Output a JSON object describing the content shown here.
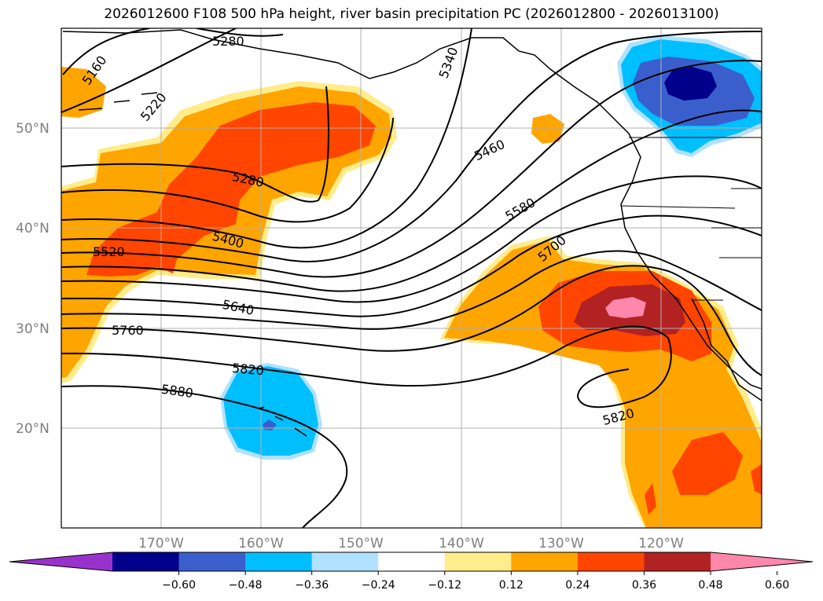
{
  "title": "2026012600 F108 500 hPa height, river basin precipitation PC (2026012800 - 2026013100)",
  "lat_labels": [
    "50°N",
    "40°N",
    "30°N",
    "20°N"
  ],
  "lon_labels": [
    "170°W",
    "160°W",
    "150°W",
    "140°W",
    "130°W",
    "120°W"
  ],
  "contour_labels": [
    "5160",
    "5220",
    "5280",
    "5280",
    "5340",
    "5400",
    "5460",
    "5520",
    "5580",
    "5640",
    "5700",
    "5760",
    "5820",
    "5820",
    "5880"
  ],
  "colorbar": {
    "ticks": [
      "−0.60",
      "−0.48",
      "−0.36",
      "−0.24",
      "−0.12",
      "0.12",
      "0.24",
      "0.36",
      "0.48",
      "0.60"
    ],
    "colors": [
      "#9932cc",
      "#00008b",
      "#3a5fcd",
      "#00bfff",
      "#b0e2ff",
      "#ffffff",
      "#ffec8b",
      "#ffa500",
      "#ff4500",
      "#b22222",
      "#ff87ab"
    ]
  },
  "colors": {
    "c_n060": "#00008b",
    "c_n048": "#3a5fcd",
    "c_n036": "#00bfff",
    "c_n024": "#b0e2ff",
    "c_p012": "#ffec8b",
    "c_p024": "#ffa500",
    "c_p036": "#ff4500",
    "c_p048": "#b22222",
    "c_p060": "#ff87ab"
  }
}
